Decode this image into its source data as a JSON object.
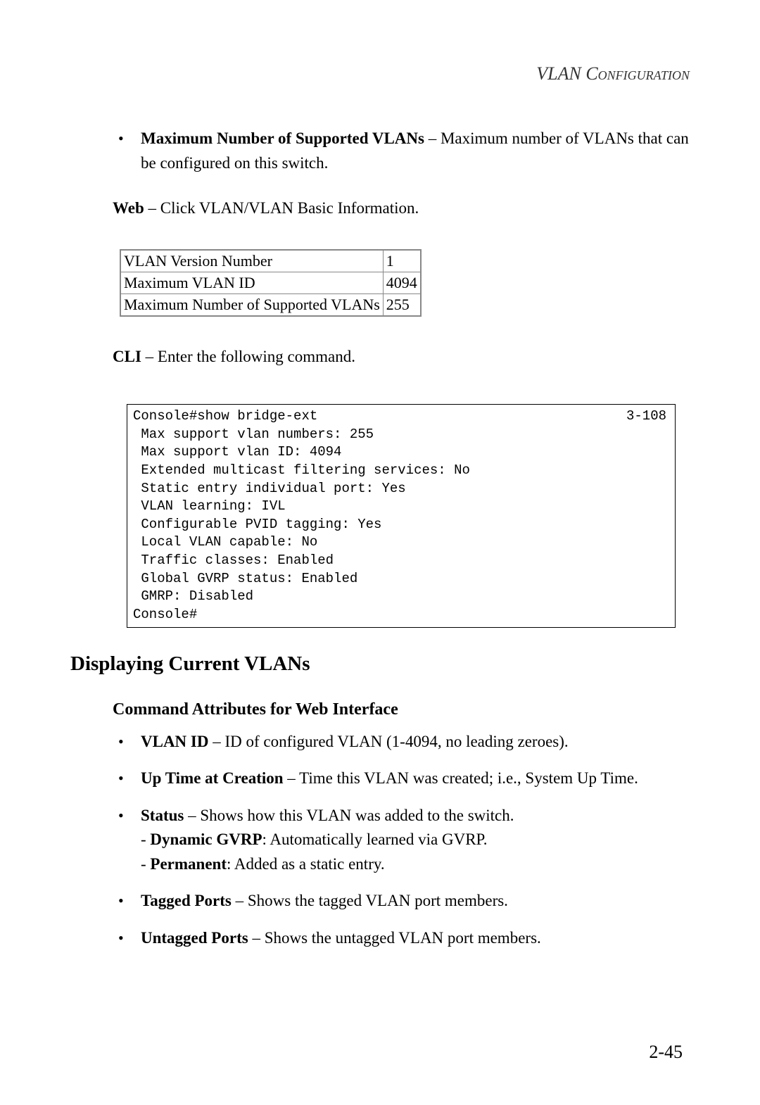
{
  "header": {
    "title": "VLAN Configuration"
  },
  "intro_bullet": {
    "label": "Maximum Number of Supported VLANs",
    "desc": " – Maximum number of VLANs that can be configured on this switch."
  },
  "web_line": {
    "prefix": "Web",
    "text": " – Click VLAN/VLAN Basic Information."
  },
  "table": {
    "rows": [
      {
        "label": "VLAN Version Number",
        "value": "1"
      },
      {
        "label": "Maximum VLAN ID",
        "value": "4094"
      },
      {
        "label": "Maximum Number of Supported VLANs",
        "value": "255"
      }
    ],
    "border_color": "#888888"
  },
  "cli_line": {
    "prefix": "CLI",
    "text": " – Enter the following command."
  },
  "cli_output": {
    "ref": "3-108",
    "lines": "Console#show bridge-ext\n Max support vlan numbers: 255\n Max support vlan ID: 4094\n Extended multicast filtering services: No\n Static entry individual port: Yes\n VLAN learning: IVL\n Configurable PVID tagging: Yes\n Local VLAN capable: No\n Traffic classes: Enabled\n Global GVRP status: Enabled\n GMRP: Disabled\nConsole#"
  },
  "section": {
    "h2": "Displaying Current VLANs",
    "h3": "Command Attributes for Web Interface",
    "bullets": [
      {
        "label": "VLAN ID",
        "desc": " – ID of configured VLAN (1-4094, no leading zeroes)."
      },
      {
        "label": "Up Time at Creation",
        "desc": " – Time this VLAN was created; i.e., System Up Time."
      },
      {
        "label": "Status",
        "desc": " – Shows how this VLAN was added to the switch.",
        "subs": [
          {
            "label": "Dynamic GVRP",
            "desc": ": Automatically learned via GVRP."
          },
          {
            "label": "Permanent",
            "desc": ": Added as a static entry."
          }
        ]
      },
      {
        "label": "Tagged Ports",
        "desc": " – Shows the tagged VLAN port members."
      },
      {
        "label": "Untagged Ports",
        "desc": " – Shows the untagged VLAN port members."
      }
    ]
  },
  "page_number": "2-45",
  "colors": {
    "text": "#000000",
    "background": "#ffffff",
    "table_border": "#888888"
  },
  "fonts": {
    "body_size_pt": 17,
    "mono_size_pt": 14,
    "h2_size_pt": 22,
    "h3_size_pt": 18
  }
}
